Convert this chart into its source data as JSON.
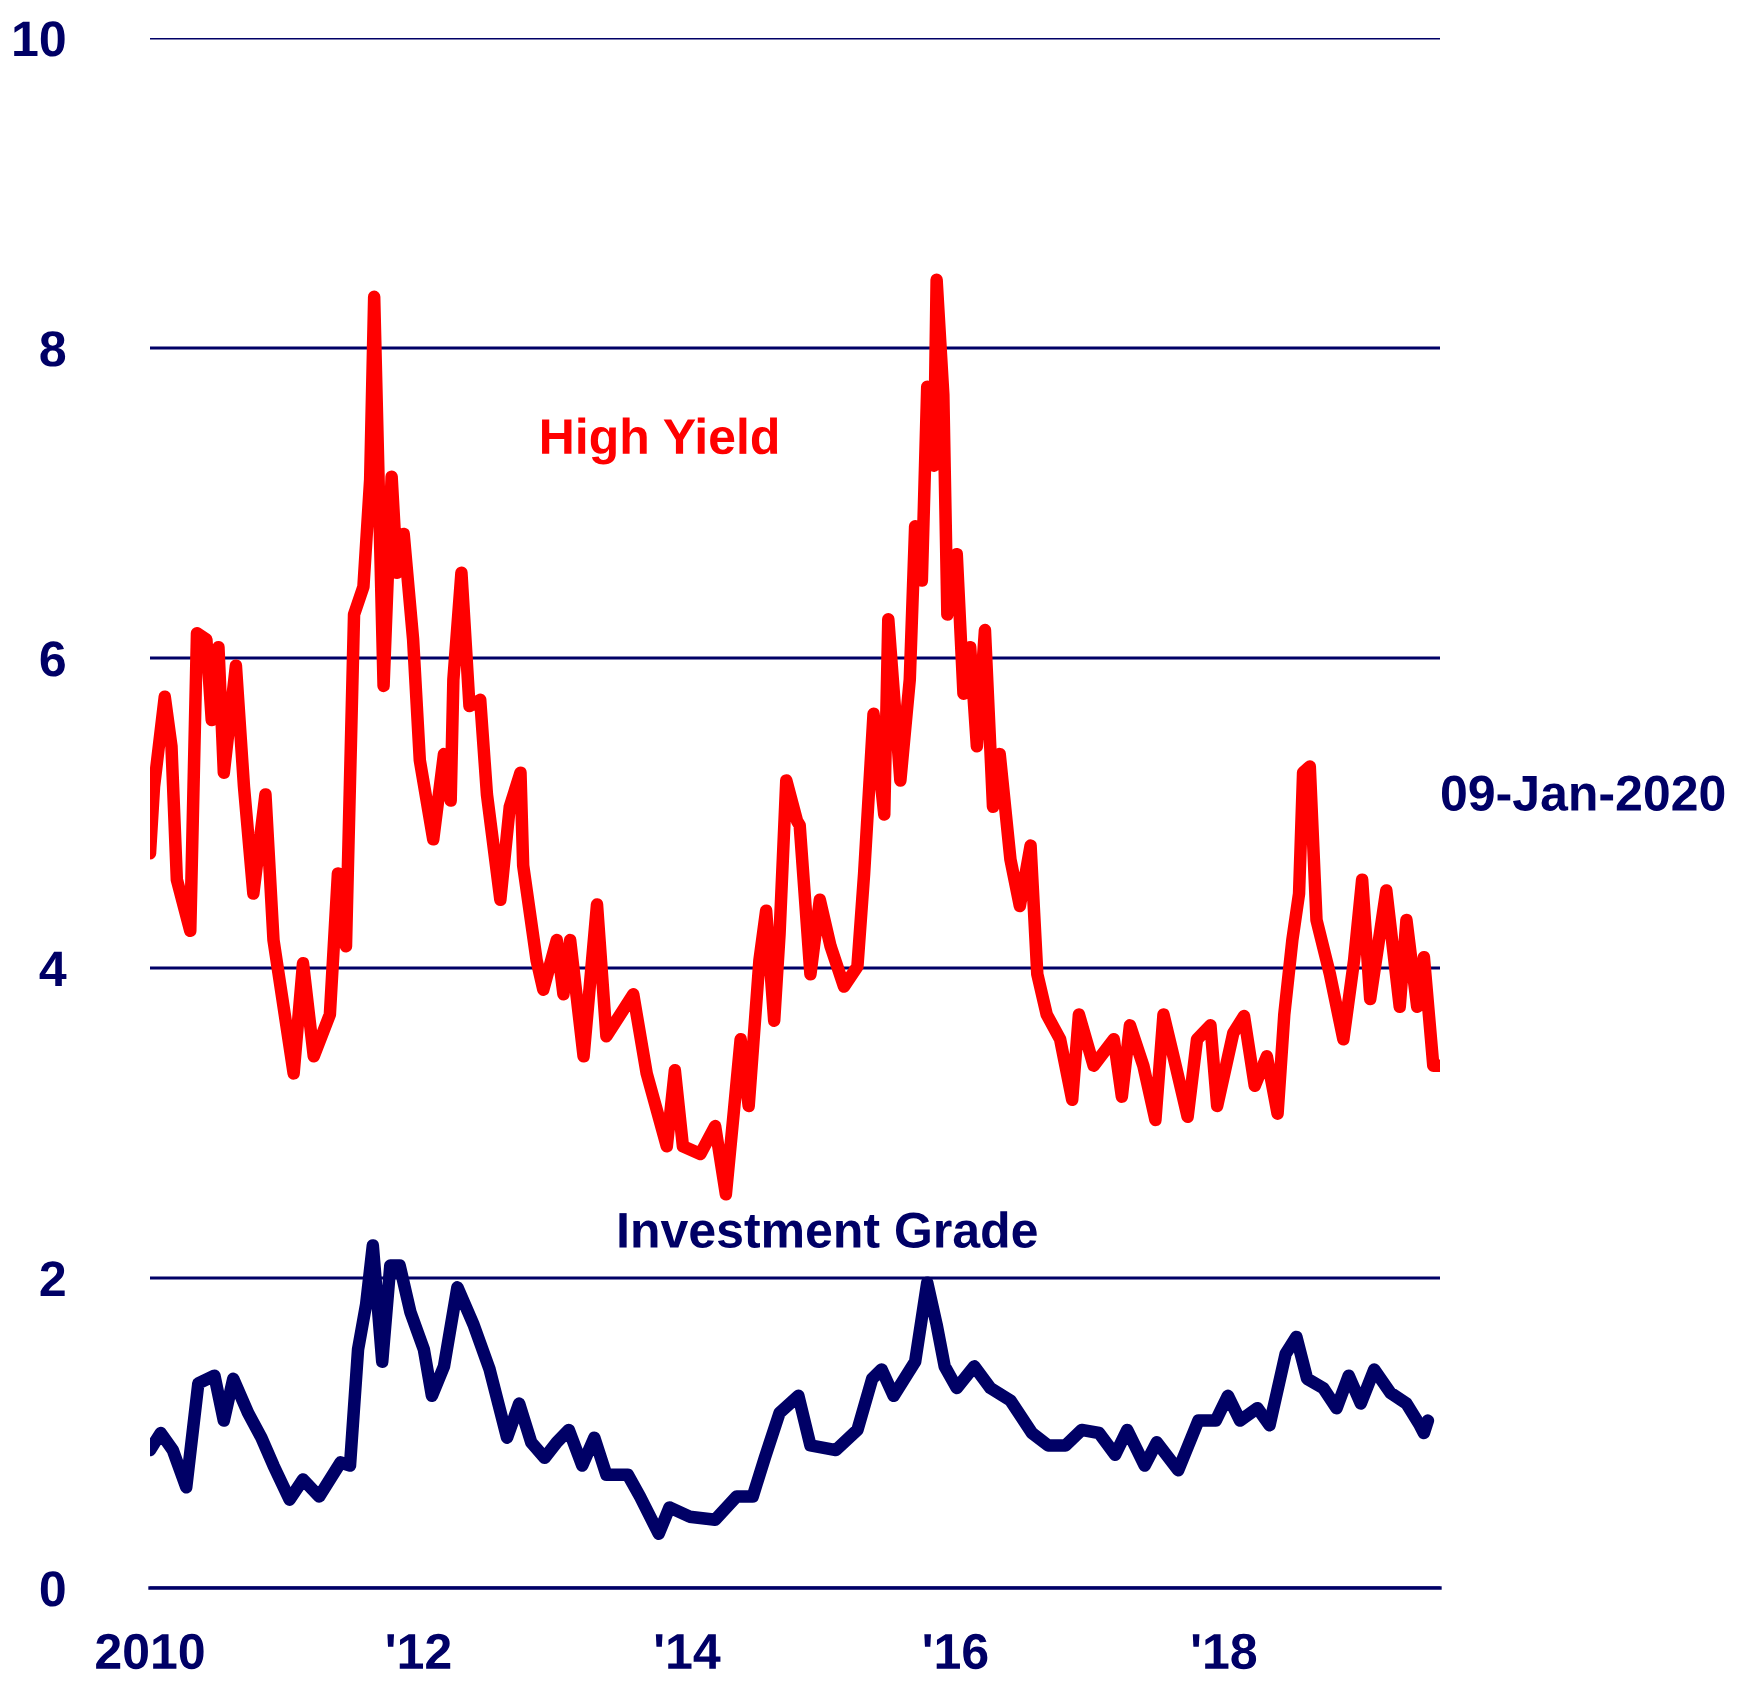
{
  "chart_data": {
    "type": "line",
    "xlim": [
      2010,
      2019.61
    ],
    "ylim": [
      0,
      10
    ],
    "xticks": [
      {
        "value": 2010,
        "label": "2010"
      },
      {
        "value": 2012,
        "label": "'12"
      },
      {
        "value": 2014,
        "label": "'14"
      },
      {
        "value": 2016,
        "label": "'16"
      },
      {
        "value": 2018,
        "label": "'18"
      }
    ],
    "yticks": [
      0,
      2,
      4,
      6,
      8,
      10
    ],
    "grid": "y",
    "legend": false,
    "line_style": "solid",
    "marker": "none",
    "annotations": [
      "09-Jan-2020"
    ],
    "series": [
      {
        "name": "High Yield",
        "color": "#ff0000",
        "x": [
          2010.0,
          2010.03,
          2010.11,
          2010.16,
          2010.2,
          2010.3,
          2010.35,
          2010.42,
          2010.46,
          2010.51,
          2010.55,
          2010.64,
          2010.7,
          2010.77,
          2010.86,
          2010.92,
          2011.07,
          2011.14,
          2011.22,
          2011.34,
          2011.4,
          2011.46,
          2011.52,
          2011.59,
          2011.64,
          2011.67,
          2011.74,
          2011.8,
          2011.84,
          2011.89,
          2011.96,
          2012.01,
          2012.11,
          2012.19,
          2012.24,
          2012.26,
          2012.32,
          2012.38,
          2012.46,
          2012.51,
          2012.61,
          2012.68,
          2012.76,
          2012.78,
          2012.88,
          2012.93,
          2013.03,
          2013.08,
          2013.13,
          2013.23,
          2013.33,
          2013.4,
          2013.6,
          2013.7,
          2013.85,
          2013.91,
          2013.97,
          2014.1,
          2014.21,
          2014.29,
          2014.35,
          2014.4,
          2014.46,
          2014.54,
          2014.59,
          2014.65,
          2014.69,
          2014.74,
          2014.82,
          2014.84,
          2014.92,
          2014.99,
          2015.07,
          2015.17,
          2015.27,
          2015.32,
          2015.39,
          2015.47,
          2015.5,
          2015.59,
          2015.66,
          2015.7,
          2015.75,
          2015.79,
          2015.84,
          2015.86,
          2015.91,
          2015.94,
          2016.01,
          2016.06,
          2016.11,
          2016.16,
          2016.22,
          2016.28,
          2016.33,
          2016.41,
          2016.48,
          2016.56,
          2016.61,
          2016.68,
          2016.78,
          2016.87,
          2016.92,
          2017.03,
          2017.18,
          2017.24,
          2017.3,
          2017.4,
          2017.49,
          2017.55,
          2017.63,
          2017.73,
          2017.8,
          2017.9,
          2017.95,
          2018.07,
          2018.15,
          2018.23,
          2018.32,
          2018.4,
          2018.45,
          2018.51,
          2018.56,
          2018.59,
          2018.64,
          2018.69,
          2018.79,
          2018.89,
          2018.97,
          2019.03,
          2019.09,
          2019.21,
          2019.31,
          2019.36,
          2019.44,
          2019.49,
          2019.56,
          2019.61
        ],
        "values": [
          4.74,
          5.17,
          5.75,
          5.43,
          4.57,
          4.24,
          6.16,
          6.12,
          5.6,
          6.07,
          5.26,
          5.95,
          5.17,
          4.48,
          5.12,
          4.18,
          3.32,
          4.03,
          3.43,
          3.7,
          4.61,
          4.14,
          6.28,
          6.46,
          7.15,
          8.33,
          5.82,
          7.17,
          6.55,
          6.8,
          6.12,
          5.34,
          4.83,
          5.38,
          5.08,
          5.86,
          6.55,
          5.69,
          5.73,
          5.12,
          4.44,
          5.04,
          5.26,
          4.66,
          4.05,
          3.86,
          4.18,
          3.83,
          4.18,
          3.43,
          4.41,
          3.56,
          3.83,
          3.32,
          2.85,
          3.34,
          2.85,
          2.8,
          2.98,
          2.54,
          3.08,
          3.54,
          3.11,
          4.05,
          4.37,
          3.66,
          4.22,
          5.21,
          4.95,
          4.92,
          3.96,
          4.44,
          4.14,
          3.88,
          4.01,
          4.61,
          5.64,
          4.99,
          6.25,
          5.21,
          5.86,
          6.85,
          6.5,
          7.75,
          7.24,
          8.44,
          7.7,
          6.28,
          6.67,
          5.77,
          6.07,
          5.43,
          6.18,
          5.04,
          5.38,
          4.7,
          4.4,
          4.79,
          3.96,
          3.7,
          3.54,
          3.15,
          3.7,
          3.37,
          3.54,
          3.17,
          3.63,
          3.37,
          3.02,
          3.7,
          3.41,
          3.04,
          3.54,
          3.63,
          3.11,
          3.58,
          3.69,
          3.24,
          3.43,
          3.06,
          3.7,
          4.18,
          4.48,
          5.26,
          5.3,
          4.31,
          3.96,
          3.54,
          4.05,
          4.57,
          3.8,
          4.5,
          3.75,
          4.31,
          3.75,
          4.07,
          3.37,
          3.37
        ]
      },
      {
        "name": "Investment Grade",
        "color": "#000066",
        "x": [
          2010.0,
          2010.08,
          2010.17,
          2010.27,
          2010.36,
          2010.48,
          2010.55,
          2010.62,
          2010.73,
          2010.83,
          2010.92,
          2011.04,
          2011.14,
          2011.26,
          2011.42,
          2011.49,
          2011.55,
          2011.61,
          2011.66,
          2011.73,
          2011.79,
          2011.86,
          2011.94,
          2012.04,
          2012.1,
          2012.19,
          2012.29,
          2012.41,
          2012.53,
          2012.66,
          2012.75,
          2012.84,
          2012.94,
          2013.03,
          2013.12,
          2013.22,
          2013.31,
          2013.4,
          2013.56,
          2013.65,
          2013.79,
          2013.87,
          2014.02,
          2014.21,
          2014.37,
          2014.49,
          2014.58,
          2014.69,
          2014.83,
          2014.92,
          2015.11,
          2015.27,
          2015.38,
          2015.45,
          2015.54,
          2015.7,
          2015.79,
          2015.86,
          2015.92,
          2016.01,
          2016.14,
          2016.26,
          2016.41,
          2016.57,
          2016.69,
          2016.82,
          2016.94,
          2017.07,
          2017.19,
          2017.28,
          2017.41,
          2017.5,
          2017.66,
          2017.81,
          2017.94,
          2018.03,
          2018.12,
          2018.25,
          2018.34,
          2018.46,
          2018.54,
          2018.62,
          2018.74,
          2018.84,
          2018.93,
          2019.02,
          2019.12,
          2019.24,
          2019.36,
          2019.46,
          2019.49,
          2019.52
        ],
        "values": [
          0.89,
          1.0,
          0.89,
          0.65,
          1.32,
          1.37,
          1.08,
          1.35,
          1.13,
          0.97,
          0.79,
          0.57,
          0.7,
          0.59,
          0.81,
          0.79,
          1.54,
          1.83,
          2.21,
          1.46,
          2.08,
          2.08,
          1.78,
          1.54,
          1.24,
          1.43,
          1.94,
          1.7,
          1.41,
          0.97,
          1.19,
          0.94,
          0.84,
          0.94,
          1.02,
          0.79,
          0.97,
          0.73,
          0.73,
          0.59,
          0.35,
          0.52,
          0.46,
          0.44,
          0.59,
          0.59,
          0.84,
          1.13,
          1.24,
          0.92,
          0.89,
          1.02,
          1.35,
          1.41,
          1.24,
          1.46,
          1.97,
          1.7,
          1.43,
          1.29,
          1.43,
          1.29,
          1.21,
          1.0,
          0.92,
          0.92,
          1.02,
          1.0,
          0.86,
          1.02,
          0.79,
          0.94,
          0.76,
          1.08,
          1.08,
          1.24,
          1.08,
          1.16,
          1.05,
          1.51,
          1.62,
          1.35,
          1.29,
          1.16,
          1.37,
          1.19,
          1.41,
          1.26,
          1.19,
          1.05,
          1.0,
          1.08
        ]
      }
    ]
  }
}
